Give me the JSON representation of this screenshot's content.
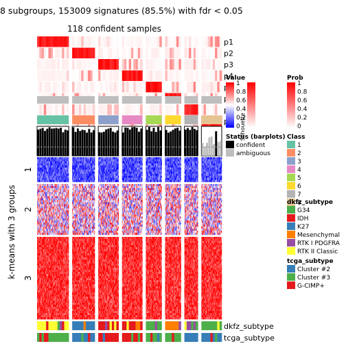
{
  "chart_data": {
    "type": "heatmap",
    "title": "8 subgroups, 153009 signatures (85.5%) with fdr < 0.05",
    "subtitle": "118 confident samples",
    "row_title": "k-means with 3 groups",
    "row_groups": [
      "1",
      "2",
      "3"
    ],
    "column_groups": [
      "1",
      "2",
      "3",
      "4",
      "5",
      "6",
      "7",
      "8"
    ],
    "prob_rows": [
      "p1",
      "p2",
      "p3",
      "p4",
      "p5",
      "p6",
      "p7",
      "p8"
    ],
    "bottom_annotations": [
      "dkfz_subtype",
      "tcga_subtype"
    ],
    "legends": {
      "value": {
        "title": "Value",
        "ticks": [
          "1",
          "0.8",
          "0.6",
          "0.4",
          "0.2",
          "0"
        ],
        "high_color": "#ff0000",
        "mid_color": "#ffffff",
        "low_color": "#0000ff"
      },
      "prob": {
        "title": "Prob",
        "ticks": [
          "1",
          "0.8",
          "0.6",
          "0.4",
          "0.2",
          "0"
        ],
        "high_color": "#ff0000",
        "low_color": "#ffffff"
      },
      "class": {
        "title": "Class",
        "items": [
          {
            "label": "1",
            "color": "#66c2a5"
          },
          {
            "label": "2",
            "color": "#fc8d62"
          },
          {
            "label": "3",
            "color": "#8da0cb"
          },
          {
            "label": "4",
            "color": "#e78ac3"
          },
          {
            "label": "5",
            "color": "#a6d854"
          },
          {
            "label": "6",
            "color": "#ffd92f"
          },
          {
            "label": "7",
            "color": "#b3b3b3"
          },
          {
            "label": "8",
            "color": "#e5c494"
          }
        ]
      },
      "status": {
        "title": "Status (barplots)",
        "items": [
          {
            "label": "confident",
            "color": "#000000"
          },
          {
            "label": "ambiguous",
            "color": "#bebebe"
          }
        ]
      },
      "silhouette": {
        "title": "Silhouette",
        "ticks": [
          "1",
          "0.8",
          "0.6",
          "0.4",
          "0.2",
          "0"
        ]
      },
      "dkfz_subtype": {
        "title": "dkfz_subtype",
        "items": [
          {
            "label": "G34",
            "color": "#4daf4a"
          },
          {
            "label": "IDH",
            "color": "#e41a1c"
          },
          {
            "label": "K27",
            "color": "#377eb8"
          },
          {
            "label": "Mesenchymal",
            "color": "#ff7f00"
          },
          {
            "label": "RTK I PDGFRA",
            "color": "#984ea3"
          },
          {
            "label": "RTK II Classic",
            "color": "#ffff33"
          }
        ]
      },
      "tcga_subtype": {
        "title": "tcga_subtype",
        "items": [
          {
            "label": "Cluster #2",
            "color": "#377eb8"
          },
          {
            "label": "Cluster #3",
            "color": "#4daf4a"
          },
          {
            "label": "G-CIMP+",
            "color": "#e41a1c"
          }
        ]
      }
    },
    "class_colors": [
      "#66c2a5",
      "#fc8d62",
      "#8da0cb",
      "#e78ac3",
      "#a6d854",
      "#ffd92f",
      "#b3b3b3",
      "#e5c494"
    ],
    "column_group_samples": [
      14,
      10,
      9,
      9,
      7,
      7,
      6,
      9
    ],
    "row_group_mean_values": [
      0.15,
      0.55,
      0.92
    ],
    "silhouette_threshold": 0.5
  }
}
